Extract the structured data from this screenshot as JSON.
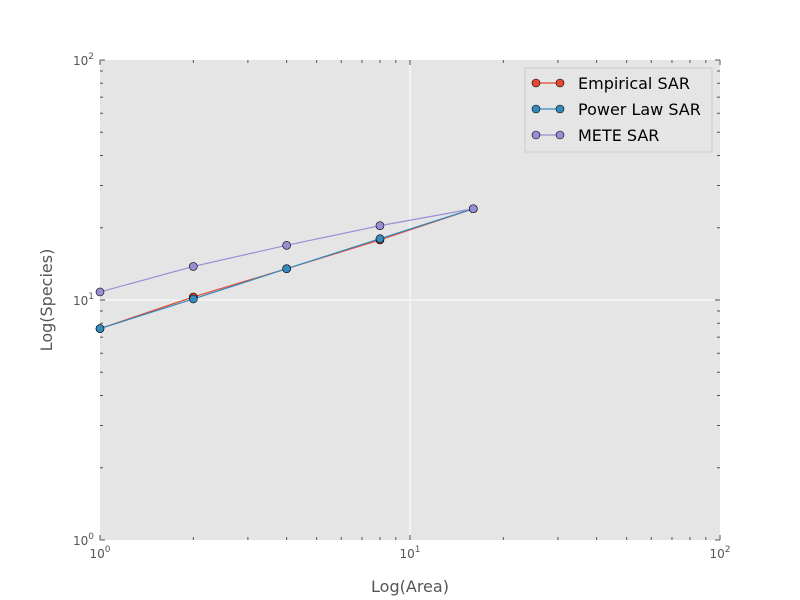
{
  "chart_data": {
    "type": "line",
    "title": "",
    "xlabel": "Log(Area)",
    "ylabel": "Log(Species)",
    "xscale": "log",
    "yscale": "log",
    "xlim": [
      1,
      100
    ],
    "ylim": [
      1,
      100
    ],
    "grid": true,
    "legend_position": "top-right",
    "x_ticks": [
      {
        "value": 1,
        "base": "10",
        "exp": "0"
      },
      {
        "value": 10,
        "base": "10",
        "exp": "1"
      },
      {
        "value": 100,
        "base": "10",
        "exp": "2"
      }
    ],
    "y_ticks": [
      {
        "value": 1,
        "base": "10",
        "exp": "0"
      },
      {
        "value": 10,
        "base": "10",
        "exp": "1"
      },
      {
        "value": 100,
        "base": "10",
        "exp": "2"
      }
    ],
    "x": [
      1,
      2,
      4,
      8,
      16
    ],
    "series": [
      {
        "name": "Empirical SAR",
        "color": "#E24A33",
        "values": [
          7.6,
          10.3,
          13.5,
          17.8,
          24
        ]
      },
      {
        "name": "Power Law SAR",
        "color": "#348ABD",
        "values": [
          7.6,
          10.1,
          13.5,
          18.0,
          24
        ]
      },
      {
        "name": "METE SAR",
        "color": "#988ED5",
        "values": [
          10.8,
          13.8,
          16.9,
          20.4,
          24
        ]
      }
    ]
  }
}
